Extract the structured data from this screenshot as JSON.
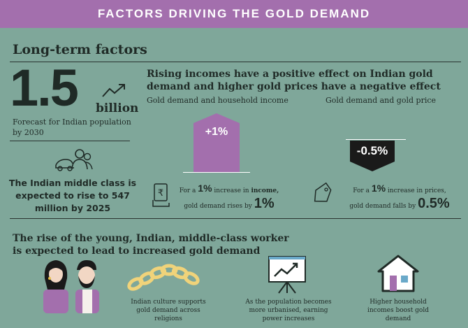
{
  "banner": {
    "title": "FACTORS DRIVING THE GOLD DEMAND"
  },
  "section": {
    "title": "Long-term factors"
  },
  "population": {
    "number": "1.5",
    "unit": "billion",
    "caption": "Forecast for Indian population by 2030",
    "icon": "trend-up-icon"
  },
  "middle_class": {
    "text": "The Indian middle class is expected to rise to 547 million by 2025",
    "icon": "people-icon"
  },
  "incomes": {
    "headline": "Rising incomes have a positive effect on Indian gold demand and higher gold prices have a negative effect",
    "income_panel": {
      "label": "Gold demand and household income",
      "value": "+1%",
      "caption_pre": "For a",
      "caption_amt": "1%",
      "caption_mid": "increase in",
      "caption_key": "income,",
      "caption_line2": "gold demand rises by",
      "caption_result": "1%",
      "icon": "rupee-hand-icon",
      "color": "#a36fad"
    },
    "price_panel": {
      "label": "Gold demand and gold price",
      "value": "-0.5%",
      "caption_pre": "For a",
      "caption_amt": "1%",
      "caption_mid": "increase in prices,",
      "caption_line2": "gold demand falls by",
      "caption_result": "0.5%",
      "icon": "price-tag-icon",
      "color": "#1a1a1a"
    }
  },
  "young": {
    "headline": "The rise of the young, Indian, middle-class worker is expected to lead to increased gold demand",
    "items": [
      {
        "icon": "couple-icon",
        "caption": ""
      },
      {
        "icon": "chain-icon",
        "caption": "Indian culture supports gold demand across religions"
      },
      {
        "icon": "chart-board-icon",
        "caption": "As the population becomes more urbanised, earning power increases"
      },
      {
        "icon": "house-icon",
        "caption": "Higher household incomes boost gold demand"
      }
    ]
  }
}
